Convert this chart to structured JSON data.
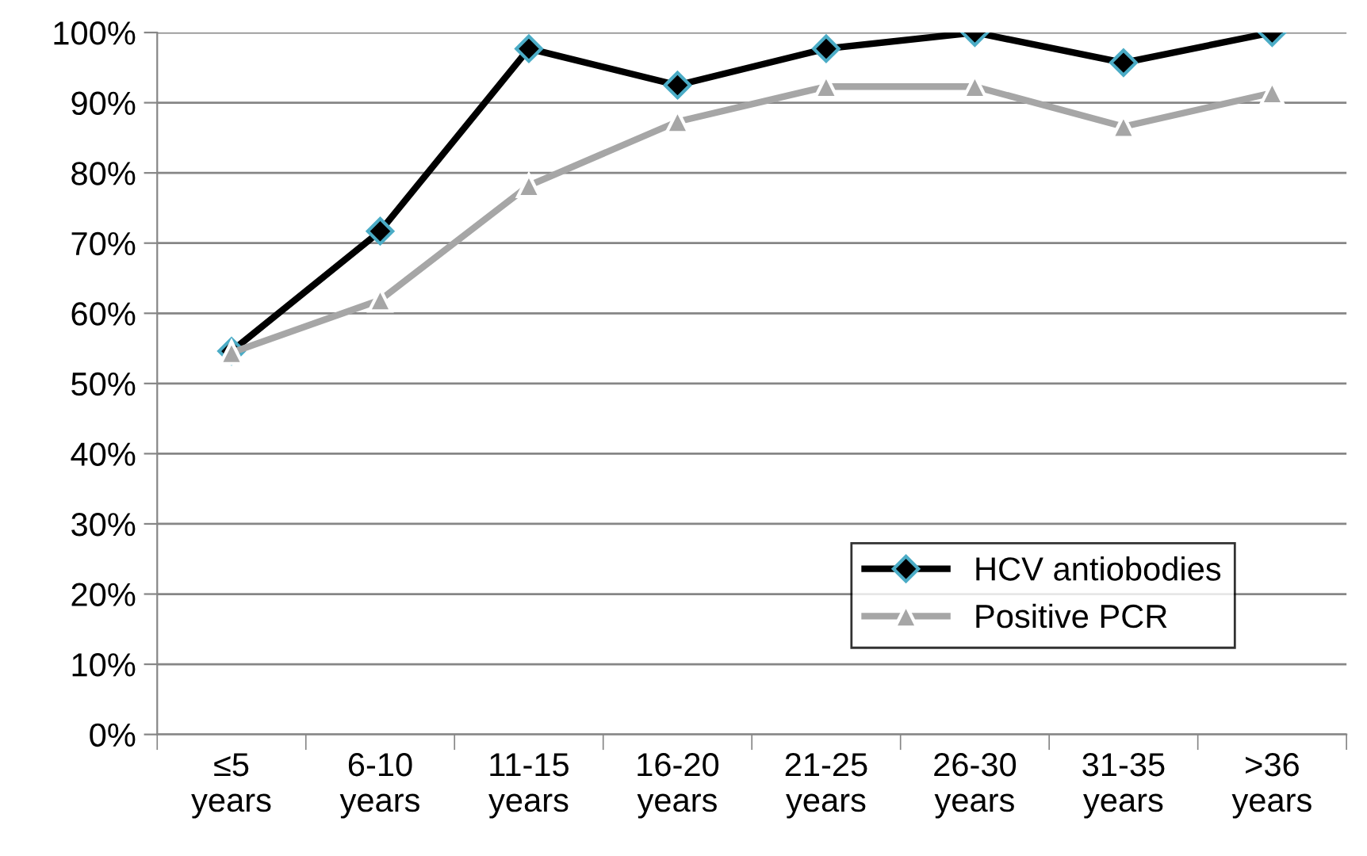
{
  "chart_data": {
    "type": "line",
    "categories": [
      "≤5\nyears",
      "6-10\nyears",
      "11-15\nyears",
      "16-20\nyears",
      "21-25\nyears",
      "26-30\nyears",
      "31-35\nyears",
      ">36\nyears"
    ],
    "series": [
      {
        "name": "HCV antiobodies",
        "color": "#000000",
        "marker": "diamond",
        "values": [
          54.6,
          71.7,
          97.7,
          92.5,
          97.7,
          100,
          95.7,
          100
        ]
      },
      {
        "name": "Positive PCR",
        "color": "#a6a6a6",
        "marker": "triangle",
        "values": [
          54.4,
          61.9,
          78.2,
          87.3,
          92.3,
          92.3,
          86.6,
          91.4
        ]
      }
    ],
    "ylim": [
      0,
      100
    ],
    "yticks": [
      {
        "value": 0,
        "label": "0%"
      },
      {
        "value": 10,
        "label": "10%"
      },
      {
        "value": 20,
        "label": "20%"
      },
      {
        "value": 30,
        "label": "30%"
      },
      {
        "value": 40,
        "label": "40%"
      },
      {
        "value": 50,
        "label": "50%"
      },
      {
        "value": 60,
        "label": "60%"
      },
      {
        "value": 70,
        "label": "70%"
      },
      {
        "value": 80,
        "label": "80%"
      },
      {
        "value": 90,
        "label": "90%"
      },
      {
        "value": 100,
        "label": "100%"
      }
    ],
    "grid": "y",
    "legend": "lower right",
    "line_style": "solid"
  }
}
